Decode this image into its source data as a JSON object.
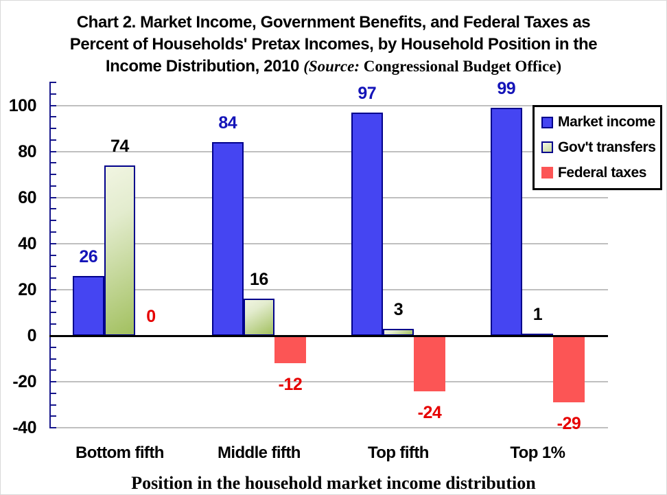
{
  "title": {
    "line1": "Chart 2. Market Income, Government Benefits, and Federal Taxes as",
    "line2": "Percent of Households' Pretax Incomes, by Household Position in the",
    "line3_main": "Income Distribution, 2010",
    "line3_source_label": "(Source:",
    "line3_source_value": "Congressional Budget Office)"
  },
  "legend": {
    "items": [
      {
        "label": "Market income",
        "text_color": "#0000dc",
        "swatch_fill": "#4545f2",
        "swatch_border": "#00008b",
        "swatch_gradient": false
      },
      {
        "label": "Gov't transfers",
        "text_color": "#006400",
        "swatch_fill": "#e9f0d6",
        "swatch_border": "#00008b",
        "swatch_gradient": true
      },
      {
        "label": "Federal taxes",
        "text_color": "#e60000",
        "swatch_fill": "#fc5555",
        "swatch_border": "#fc5555",
        "swatch_gradient": false
      }
    ]
  },
  "chart_data": {
    "type": "bar",
    "categories": [
      "Bottom fifth",
      "Middle fifth",
      "Top fifth",
      "Top 1%"
    ],
    "series": [
      {
        "name": "Market income",
        "style": "blue",
        "values": [
          26,
          84,
          97,
          99
        ],
        "label_color": "#1414b8"
      },
      {
        "name": "Gov't transfers",
        "style": "green",
        "values": [
          74,
          16,
          3,
          1
        ],
        "label_color": "#000000"
      },
      {
        "name": "Federal taxes",
        "style": "red",
        "values": [
          0,
          -12,
          -24,
          -29
        ],
        "label_color": "#e60000"
      }
    ],
    "xlabel": "Position in the household market income distribution",
    "y_axis": {
      "min": -40,
      "max": 110,
      "major_step": 20,
      "minor_step": 5,
      "major_labels": [
        -40,
        -20,
        0,
        20,
        40,
        60,
        80,
        100
      ]
    },
    "grid": true,
    "legend_position": "top-right",
    "gridline_color": "#bfbfbf",
    "axis_color": "#15158b",
    "zero_line_color": "#000000"
  }
}
